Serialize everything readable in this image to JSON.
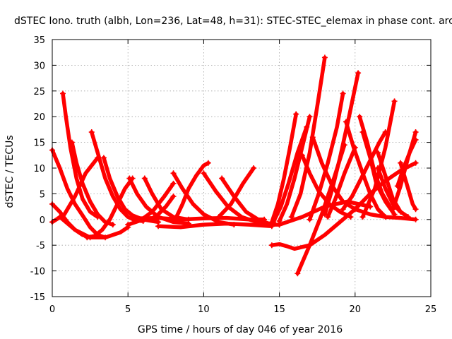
{
  "chart_data": {
    "type": "scatter",
    "title": "dSTEC Iono. truth (albh, Lon=236, Lat=48, h=31): STEC-STEC_elemax in phase cont. arc",
    "xlabel": "GPS time / hours of day 046 of year 2016",
    "ylabel": "dSTEC  / TECUs",
    "xlim": [
      0,
      25
    ],
    "ylim": [
      -15,
      35
    ],
    "xticks": [
      0,
      5,
      10,
      15,
      20,
      25
    ],
    "yticks": [
      -15,
      -10,
      -5,
      0,
      5,
      10,
      15,
      20,
      25,
      30,
      35
    ],
    "grid": true,
    "marker": "+",
    "color": "#ff0000",
    "series": [
      {
        "x": [
          0.0,
          0.5,
          1.0,
          1.5,
          2.0,
          2.5,
          3.0,
          3.5
        ],
        "y": [
          13.5,
          10.0,
          6.0,
          3.0,
          0.8,
          -1.5,
          -3.0,
          -3.5
        ]
      },
      {
        "x": [
          0.7,
          0.9,
          1.2,
          1.6,
          2.0,
          2.5,
          3.0
        ],
        "y": [
          24.5,
          20.0,
          14.0,
          8.0,
          4.0,
          1.5,
          0.5
        ]
      },
      {
        "x": [
          1.3,
          1.6,
          2.0,
          2.5,
          3.0,
          3.5,
          4.0
        ],
        "y": [
          15.0,
          11.0,
          7.0,
          3.5,
          1.0,
          -0.5,
          -1.0
        ]
      },
      {
        "x": [
          0.0,
          0.5,
          1.0,
          1.5,
          2.0,
          2.5
        ],
        "y": [
          3.0,
          1.5,
          -0.5,
          -2.0,
          -3.0,
          -3.5
        ]
      },
      {
        "x": [
          2.6,
          3.0,
          3.5,
          4.0,
          4.5,
          5.0,
          5.5,
          6.0
        ],
        "y": [
          17.0,
          13.0,
          8.0,
          4.5,
          2.0,
          0.5,
          -0.2,
          -0.3
        ]
      },
      {
        "x": [
          3.4,
          3.8,
          4.3,
          4.8,
          5.3,
          6.0,
          7.0
        ],
        "y": [
          12.0,
          8.0,
          4.5,
          2.0,
          0.8,
          0.0,
          -0.5
        ]
      },
      {
        "x": [
          0.0,
          0.8,
          1.5,
          2.2,
          3.0
        ],
        "y": [
          -0.5,
          1.0,
          4.5,
          9.0,
          12.0
        ]
      },
      {
        "x": [
          0.5,
          1.5,
          2.5,
          3.5,
          4.5,
          5.0
        ],
        "y": [
          0.5,
          -2.0,
          -3.5,
          -3.5,
          -2.5,
          -1.5
        ]
      },
      {
        "x": [
          2.3,
          2.8,
          3.3,
          3.8,
          4.3,
          4.8,
          5.3
        ],
        "y": [
          -3.5,
          -3.2,
          -2.0,
          0.0,
          3.0,
          6.0,
          8.0
        ]
      },
      {
        "x": [
          5.1,
          5.6,
          6.2,
          7.0,
          8.0,
          9.0
        ],
        "y": [
          8.0,
          5.0,
          2.5,
          0.5,
          -0.5,
          -0.8
        ]
      },
      {
        "x": [
          6.1,
          6.6,
          7.2,
          8.0,
          9.0
        ],
        "y": [
          8.0,
          5.0,
          2.0,
          0.5,
          0.0
        ]
      },
      {
        "x": [
          5.0,
          5.8,
          6.6,
          7.4,
          8.0
        ],
        "y": [
          -1.0,
          -0.2,
          1.5,
          4.5,
          7.0
        ]
      },
      {
        "x": [
          6.5,
          7.0,
          7.5,
          8.0
        ],
        "y": [
          0.0,
          1.0,
          2.5,
          4.5
        ]
      },
      {
        "x": [
          8.2,
          8.6,
          9.0,
          9.5,
          10.0,
          10.3
        ],
        "y": [
          0.5,
          3.0,
          6.0,
          8.5,
          10.5,
          11.0
        ]
      },
      {
        "x": [
          8.0,
          8.6,
          9.3,
          10.0,
          11.0,
          12.0
        ],
        "y": [
          9.0,
          6.0,
          3.0,
          1.0,
          -0.5,
          -1.0
        ]
      },
      {
        "x": [
          10.0,
          10.8,
          11.6,
          12.5,
          13.5,
          14.5
        ],
        "y": [
          9.0,
          5.5,
          2.5,
          0.5,
          -0.5,
          -1.0
        ]
      },
      {
        "x": [
          11.2,
          12.0,
          12.8,
          13.6,
          14.5,
          15.0
        ],
        "y": [
          8.0,
          4.5,
          1.5,
          0.0,
          -1.0,
          -1.0
        ]
      },
      {
        "x": [
          11.0,
          11.8,
          12.6,
          13.3
        ],
        "y": [
          0.5,
          3.0,
          7.0,
          10.0
        ]
      },
      {
        "x": [
          7.0,
          8.5,
          10.0,
          11.5,
          13.0,
          14.5
        ],
        "y": [
          -1.3,
          -1.5,
          -1.0,
          -0.8,
          -1.0,
          -1.3
        ]
      },
      {
        "x": [
          5.5,
          7.0,
          8.5,
          10.0,
          11.5,
          13.0,
          14.0
        ],
        "y": [
          0.2,
          0.3,
          0.0,
          0.2,
          0.3,
          0.0,
          0.0
        ]
      },
      {
        "x": [
          14.5,
          15.0,
          15.5,
          16.0,
          17.0,
          18.0,
          19.0,
          20.0,
          21.0,
          22.0,
          23.0,
          24.0
        ],
        "y": [
          -5.0,
          -4.8,
          -5.2,
          -5.7,
          -5.0,
          -3.0,
          -0.5,
          2.0,
          5.0,
          7.5,
          9.5,
          11.0
        ]
      },
      {
        "x": [
          14.5,
          14.9,
          15.3,
          15.7,
          16.1
        ],
        "y": [
          -0.5,
          3.0,
          8.0,
          14.0,
          20.5
        ]
      },
      {
        "x": [
          14.6,
          15.1,
          15.6,
          16.2,
          16.8
        ],
        "y": [
          -0.5,
          2.5,
          7.0,
          13.0,
          18.0
        ]
      },
      {
        "x": [
          15.0,
          15.5,
          16.0,
          16.5,
          17.0
        ],
        "y": [
          -0.3,
          3.0,
          8.0,
          14.0,
          20.0
        ]
      },
      {
        "x": [
          15.8,
          16.4,
          17.0,
          17.5,
          18.0
        ],
        "y": [
          0.5,
          5.0,
          13.0,
          22.0,
          31.5
        ]
      },
      {
        "x": [
          16.2,
          17.0,
          17.8,
          18.6,
          19.3
        ],
        "y": [
          -10.5,
          -5.0,
          1.0,
          8.0,
          14.5
        ]
      },
      {
        "x": [
          17.0,
          17.6,
          18.2,
          18.8,
          19.2
        ],
        "y": [
          0.0,
          5.0,
          11.0,
          18.0,
          24.5
        ]
      },
      {
        "x": [
          18.0,
          18.5,
          19.0,
          19.6,
          20.2
        ],
        "y": [
          1.0,
          6.0,
          12.0,
          20.0,
          28.5
        ]
      },
      {
        "x": [
          18.2,
          18.7,
          19.3,
          20.0
        ],
        "y": [
          0.5,
          4.0,
          9.0,
          14.0
        ]
      },
      {
        "x": [
          16.5,
          17.0,
          17.6,
          18.3,
          19.0,
          19.7
        ],
        "y": [
          12.5,
          9.0,
          5.5,
          3.0,
          1.5,
          0.5
        ]
      },
      {
        "x": [
          17.2,
          17.8,
          18.5,
          19.2,
          20.0
        ],
        "y": [
          16.0,
          11.0,
          6.5,
          3.5,
          2.0
        ]
      },
      {
        "x": [
          19.4,
          19.9,
          20.5,
          21.0,
          21.5,
          22.0
        ],
        "y": [
          19.0,
          14.0,
          9.0,
          5.0,
          2.0,
          0.5
        ]
      },
      {
        "x": [
          20.3,
          20.8,
          21.3,
          21.8,
          22.4
        ],
        "y": [
          20.0,
          15.0,
          9.0,
          5.0,
          2.0
        ]
      },
      {
        "x": [
          19.2,
          19.8,
          20.4,
          21.0,
          21.6,
          22.0
        ],
        "y": [
          2.0,
          4.5,
          8.0,
          11.5,
          15.0,
          17.0
        ]
      },
      {
        "x": [
          20.5,
          21.0,
          21.4,
          22.0,
          22.6
        ],
        "y": [
          17.0,
          12.0,
          7.0,
          3.5,
          1.0
        ]
      },
      {
        "x": [
          21.5,
          22.0,
          22.5,
          23.0
        ],
        "y": [
          13.0,
          8.5,
          4.0,
          1.5
        ]
      },
      {
        "x": [
          21.5,
          22.0,
          22.5,
          23.0,
          23.5
        ],
        "y": [
          10.0,
          6.0,
          3.0,
          1.5,
          0.5
        ]
      },
      {
        "x": [
          20.5,
          21.3,
          22.0,
          22.6
        ],
        "y": [
          0.5,
          6.0,
          14.0,
          23.0
        ]
      },
      {
        "x": [
          22.5,
          23.0,
          23.5,
          24.0
        ],
        "y": [
          2.0,
          6.5,
          12.0,
          17.0
        ]
      },
      {
        "x": [
          22.8,
          23.2,
          23.6,
          24.0
        ],
        "y": [
          6.5,
          10.0,
          13.0,
          15.5
        ]
      },
      {
        "x": [
          23.0,
          23.4,
          23.8,
          24.0
        ],
        "y": [
          11.0,
          7.0,
          3.0,
          2.0
        ]
      },
      {
        "x": [
          20.0,
          21.0,
          22.0,
          23.0,
          24.0
        ],
        "y": [
          2.0,
          1.0,
          0.5,
          0.3,
          0.0
        ]
      },
      {
        "x": [
          15.0,
          16.5,
          18.0,
          19.5,
          21.0
        ],
        "y": [
          -1.0,
          0.5,
          2.5,
          3.5,
          2.5
        ]
      }
    ]
  }
}
